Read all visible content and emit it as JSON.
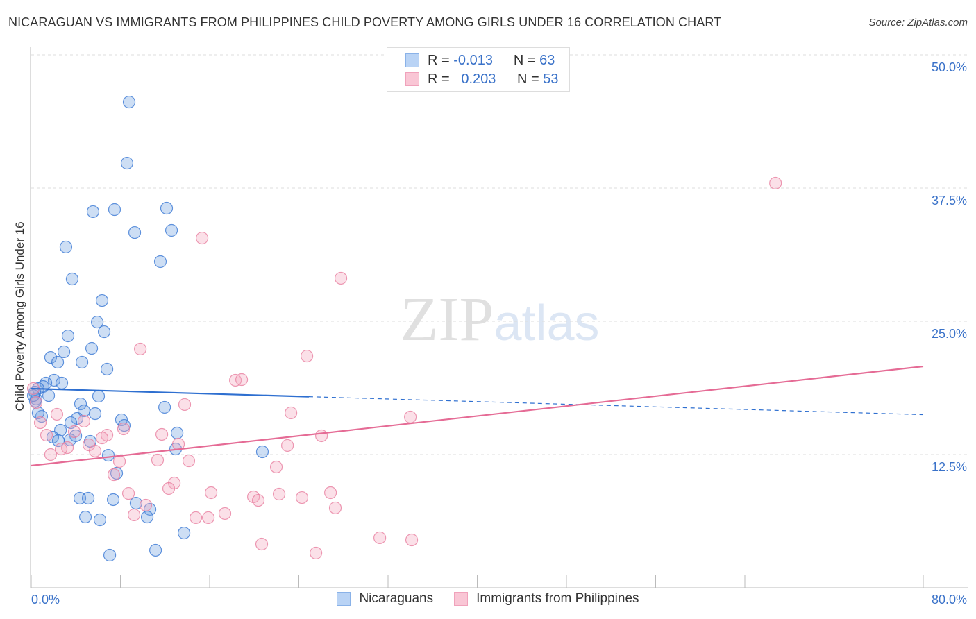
{
  "title": "NICARAGUAN VS IMMIGRANTS FROM PHILIPPINES CHILD POVERTY AMONG GIRLS UNDER 16 CORRELATION CHART",
  "source": "Source: ZipAtlas.com",
  "watermark": "ZIPatlas",
  "legend": {
    "rows": [
      {
        "r_label": "R =",
        "r_value": "-0.013",
        "n_label": "N =",
        "n_value": "63"
      },
      {
        "r_label": "R =",
        "r_value": "0.203",
        "n_label": "N =",
        "n_value": "53"
      }
    ]
  },
  "chart_data": {
    "type": "scatter",
    "title": "NICARAGUAN VS IMMIGRANTS FROM PHILIPPINES CHILD POVERTY AMONG GIRLS UNDER 16 CORRELATION CHART",
    "xlabel": "",
    "ylabel": "Child Poverty Among Girls Under 16",
    "xlim": [
      0,
      80
    ],
    "ylim": [
      0,
      52
    ],
    "x_tick_labels": [
      "0.0%",
      "80.0%"
    ],
    "y_ticks": [
      12.5,
      25,
      37.5,
      50
    ],
    "y_tick_labels": [
      "12.5%",
      "25.0%",
      "37.5%",
      "50.0%"
    ],
    "grid": true,
    "legend_position": "bottom",
    "series": [
      {
        "name": "Nicaraguans",
        "color": "#6fa0e0",
        "stroke": "#3a78d4",
        "trend": {
          "x0": 0,
          "y0": 18.69,
          "x1": 80,
          "y1": 16.24,
          "solid_until": 24.9,
          "color": "#2e6fd0"
        },
        "points": [
          [
            8.78,
            45.57
          ],
          [
            8.59,
            39.84
          ],
          [
            5.54,
            35.29
          ],
          [
            7.47,
            35.48
          ],
          [
            12.14,
            35.61
          ],
          [
            9.28,
            33.33
          ],
          [
            12.58,
            33.53
          ],
          [
            3.11,
            31.97
          ],
          [
            11.58,
            30.6
          ],
          [
            3.67,
            28.97
          ],
          [
            6.35,
            26.95
          ],
          [
            5.92,
            24.93
          ],
          [
            6.54,
            24.02
          ],
          [
            3.3,
            23.63
          ],
          [
            5.42,
            22.46
          ],
          [
            2.93,
            22.14
          ],
          [
            1.74,
            21.61
          ],
          [
            2.37,
            21.16
          ],
          [
            4.55,
            21.16
          ],
          [
            6.79,
            20.51
          ],
          [
            2.05,
            19.47
          ],
          [
            2.74,
            19.21
          ],
          [
            1.31,
            19.21
          ],
          [
            1.06,
            18.88
          ],
          [
            0.62,
            18.69
          ],
          [
            1.56,
            18.03
          ],
          [
            0.44,
            17.71
          ],
          [
            0.31,
            18.36
          ],
          [
            6.04,
            17.97
          ],
          [
            4.42,
            17.25
          ],
          [
            11.96,
            16.93
          ],
          [
            4.73,
            16.6
          ],
          [
            5.73,
            16.34
          ],
          [
            0.93,
            16.08
          ],
          [
            0.62,
            16.41
          ],
          [
            4.11,
            15.89
          ],
          [
            8.09,
            15.76
          ],
          [
            3.55,
            15.49
          ],
          [
            8.34,
            15.23
          ],
          [
            2.62,
            14.78
          ],
          [
            13.08,
            14.52
          ],
          [
            3.99,
            14.26
          ],
          [
            1.93,
            14.13
          ],
          [
            2.43,
            13.8
          ],
          [
            5.29,
            13.74
          ],
          [
            3.49,
            13.87
          ],
          [
            12.95,
            13.02
          ],
          [
            20.73,
            12.76
          ],
          [
            6.91,
            12.43
          ],
          [
            7.66,
            10.74
          ],
          [
            4.36,
            8.4
          ],
          [
            5.11,
            8.4
          ],
          [
            7.35,
            8.27
          ],
          [
            9.4,
            7.94
          ],
          [
            10.65,
            7.36
          ],
          [
            4.86,
            6.64
          ],
          [
            6.16,
            6.38
          ],
          [
            10.4,
            6.64
          ],
          [
            13.7,
            5.14
          ],
          [
            7.04,
            3.06
          ],
          [
            11.15,
            3.52
          ],
          [
            0.37,
            17.51
          ],
          [
            0.19,
            18.03
          ]
        ]
      },
      {
        "name": "Immigrants from Philippines",
        "color": "#f4a6bd",
        "stroke": "#e87fa0",
        "trend": {
          "x0": 0,
          "y0": 11.46,
          "x1": 80,
          "y1": 20.77,
          "solid_until": 80,
          "color": "#e56b95"
        },
        "points": [
          [
            66.75,
            37.96
          ],
          [
            15.32,
            32.81
          ],
          [
            27.77,
            29.04
          ],
          [
            9.78,
            22.4
          ],
          [
            24.72,
            21.74
          ],
          [
            18.31,
            19.47
          ],
          [
            18.87,
            19.53
          ],
          [
            13.76,
            17.19
          ],
          [
            23.29,
            16.41
          ],
          [
            2.3,
            16.28
          ],
          [
            34.0,
            16.02
          ],
          [
            4.73,
            15.63
          ],
          [
            0.81,
            15.49
          ],
          [
            8.28,
            14.91
          ],
          [
            3.86,
            14.65
          ],
          [
            1.37,
            14.32
          ],
          [
            6.79,
            14.32
          ],
          [
            11.71,
            14.39
          ],
          [
            13.2,
            13.48
          ],
          [
            5.17,
            13.41
          ],
          [
            6.35,
            14.06
          ],
          [
            3.24,
            13.15
          ],
          [
            2.68,
            13.02
          ],
          [
            26.03,
            14.26
          ],
          [
            22.98,
            13.35
          ],
          [
            5.73,
            12.83
          ],
          [
            1.74,
            12.5
          ],
          [
            7.91,
            11.85
          ],
          [
            11.33,
            11.98
          ],
          [
            14.13,
            11.91
          ],
          [
            21.98,
            11.33
          ],
          [
            7.41,
            10.61
          ],
          [
            12.83,
            9.83
          ],
          [
            12.33,
            9.31
          ],
          [
            8.72,
            8.85
          ],
          [
            16.13,
            8.92
          ],
          [
            19.93,
            8.53
          ],
          [
            22.23,
            8.79
          ],
          [
            24.28,
            8.46
          ],
          [
            26.84,
            8.92
          ],
          [
            20.36,
            8.2
          ],
          [
            10.27,
            7.75
          ],
          [
            27.27,
            7.49
          ],
          [
            9.22,
            6.84
          ],
          [
            14.76,
            6.58
          ],
          [
            15.88,
            6.58
          ],
          [
            17.37,
            6.97
          ],
          [
            31.26,
            4.69
          ],
          [
            34.12,
            4.49
          ],
          [
            20.67,
            4.1
          ],
          [
            25.53,
            3.26
          ],
          [
            0.19,
            18.69
          ],
          [
            0.44,
            17.38
          ]
        ]
      }
    ]
  }
}
